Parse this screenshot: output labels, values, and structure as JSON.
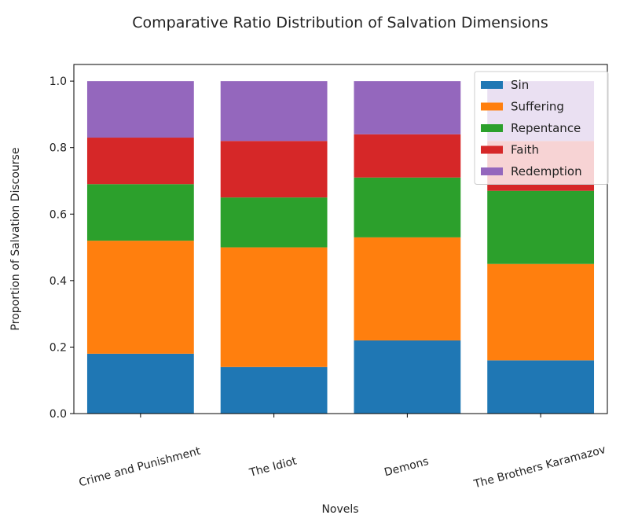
{
  "chart_data": {
    "type": "bar",
    "stacked": true,
    "title": "Comparative Ratio Distribution of Salvation Dimensions",
    "xlabel": "Novels",
    "ylabel": "Proportion of Salvation Discourse",
    "ylim": [
      0,
      1.05
    ],
    "yticks": [
      "0.0",
      "0.2",
      "0.4",
      "0.6",
      "0.8",
      "1.0"
    ],
    "categories": [
      "Crime and Punishment",
      "The Idiot",
      "Demons",
      "The Brothers Karamazov"
    ],
    "series": [
      {
        "name": "Sin",
        "color": "#1f77b4",
        "values": [
          0.18,
          0.14,
          0.22,
          0.16
        ]
      },
      {
        "name": "Suffering",
        "color": "#ff7f0e",
        "values": [
          0.34,
          0.36,
          0.31,
          0.29
        ]
      },
      {
        "name": "Repentance",
        "color": "#2ca02c",
        "values": [
          0.17,
          0.15,
          0.18,
          0.22
        ]
      },
      {
        "name": "Faith",
        "color": "#d62728",
        "values": [
          0.14,
          0.17,
          0.13,
          0.15
        ]
      },
      {
        "name": "Redemption",
        "color": "#9467bd",
        "values": [
          0.17,
          0.18,
          0.16,
          0.18
        ]
      }
    ],
    "legend_position": "top-right",
    "grid": false
  }
}
